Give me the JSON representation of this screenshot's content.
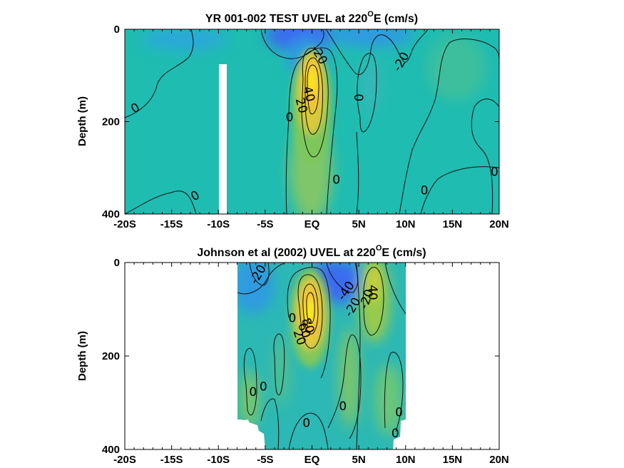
{
  "colors": {
    "background_field": "#1fbcb1",
    "strong_west": "#3a6cf0",
    "west": "#2f9be0",
    "east_weak": "#55c389",
    "east_mid": "#a6cc46",
    "east_strong": "#f5d32a",
    "core": "#f9f00f",
    "core_edge": "#e09a20",
    "nan": "#ffffff"
  },
  "chart_data": [
    {
      "type": "heatmap",
      "title_main": "YR 001-002 TEST UVEL at 220",
      "title_sup": "O",
      "title_tail": "E (cm/s)",
      "xlabel": "",
      "ylabel": "Depth (m)",
      "xlim": [
        -20,
        20
      ],
      "ylim": [
        400,
        0
      ],
      "xticks": [
        -20,
        -15,
        -10,
        -5,
        0,
        5,
        10,
        15,
        20
      ],
      "xtick_labels": [
        "-20S",
        "-15S",
        "-10S",
        "-5S",
        "EQ",
        "5N",
        "10N",
        "15N",
        "20N"
      ],
      "yticks": [
        0,
        200,
        400
      ],
      "ytick_labels": [
        "0",
        "200",
        "400"
      ],
      "contour_labels": [
        {
          "text": "0",
          "lat": -18.9,
          "depth": 170,
          "rot": -30
        },
        {
          "text": "0",
          "lat": -12.5,
          "depth": 360,
          "rot": -30
        },
        {
          "text": "-20",
          "lat": 0.8,
          "depth": 55,
          "rot": 60
        },
        {
          "text": "-20",
          "lat": 9.5,
          "depth": 70,
          "rot": -60
        },
        {
          "text": "40",
          "lat": -0.3,
          "depth": 140,
          "rot": 75
        },
        {
          "text": "20",
          "lat": -1.1,
          "depth": 165,
          "rot": 75
        },
        {
          "text": "0",
          "lat": -2.4,
          "depth": 190,
          "rot": 0
        },
        {
          "text": "0",
          "lat": 5.0,
          "depth": 148,
          "rot": 90
        },
        {
          "text": "0",
          "lat": 2.6,
          "depth": 325,
          "rot": 0
        },
        {
          "text": "0",
          "lat": 12.0,
          "depth": 348,
          "rot": 0
        },
        {
          "text": "0",
          "lat": 19.5,
          "depth": 308,
          "rot": 0
        }
      ]
    },
    {
      "type": "heatmap",
      "title_main": "Johnson et al (2002) UVEL at 220",
      "title_sup": "O",
      "title_tail": "E (cm/s)",
      "xlabel": "",
      "ylabel": "Depth (m)",
      "xlim": [
        -20,
        20
      ],
      "ylim": [
        400,
        0
      ],
      "xticks": [
        -20,
        -15,
        -10,
        -5,
        0,
        5,
        10,
        15,
        20
      ],
      "xtick_labels": [
        "-20S",
        "-15S",
        "-10S",
        "-5S",
        "EQ",
        "5N",
        "10N",
        "15N",
        "20N"
      ],
      "yticks": [
        0,
        200,
        400
      ],
      "ytick_labels": [
        "0",
        "200",
        "400"
      ],
      "data_extent_lat": [
        -8,
        10
      ],
      "contour_labels": [
        {
          "text": "-20",
          "lat": -5.8,
          "depth": 25,
          "rot": -60
        },
        {
          "text": "-40",
          "lat": 3.6,
          "depth": 60,
          "rot": -55
        },
        {
          "text": "-20",
          "lat": 4.3,
          "depth": 95,
          "rot": -60
        },
        {
          "text": "-20",
          "lat": 5.8,
          "depth": 78,
          "rot": -70
        },
        {
          "text": "40",
          "lat": 6.5,
          "depth": 64,
          "rot": 90
        },
        {
          "text": "0",
          "lat": -2.1,
          "depth": 118,
          "rot": 0
        },
        {
          "text": "80",
          "lat": -0.4,
          "depth": 135,
          "rot": 70
        },
        {
          "text": "60",
          "lat": -0.8,
          "depth": 145,
          "rot": 70
        },
        {
          "text": "20",
          "lat": -1.3,
          "depth": 160,
          "rot": 70
        },
        {
          "text": "0",
          "lat": -6.3,
          "depth": 276,
          "rot": 0
        },
        {
          "text": "0",
          "lat": -5.2,
          "depth": 265,
          "rot": 0
        },
        {
          "text": "0",
          "lat": 3.3,
          "depth": 307,
          "rot": 0
        },
        {
          "text": "0",
          "lat": -0.6,
          "depth": 343,
          "rot": 0
        },
        {
          "text": "0",
          "lat": 9.3,
          "depth": 320,
          "rot": 0
        },
        {
          "text": "0",
          "lat": 8.9,
          "depth": 365,
          "rot": 0
        }
      ]
    }
  ]
}
